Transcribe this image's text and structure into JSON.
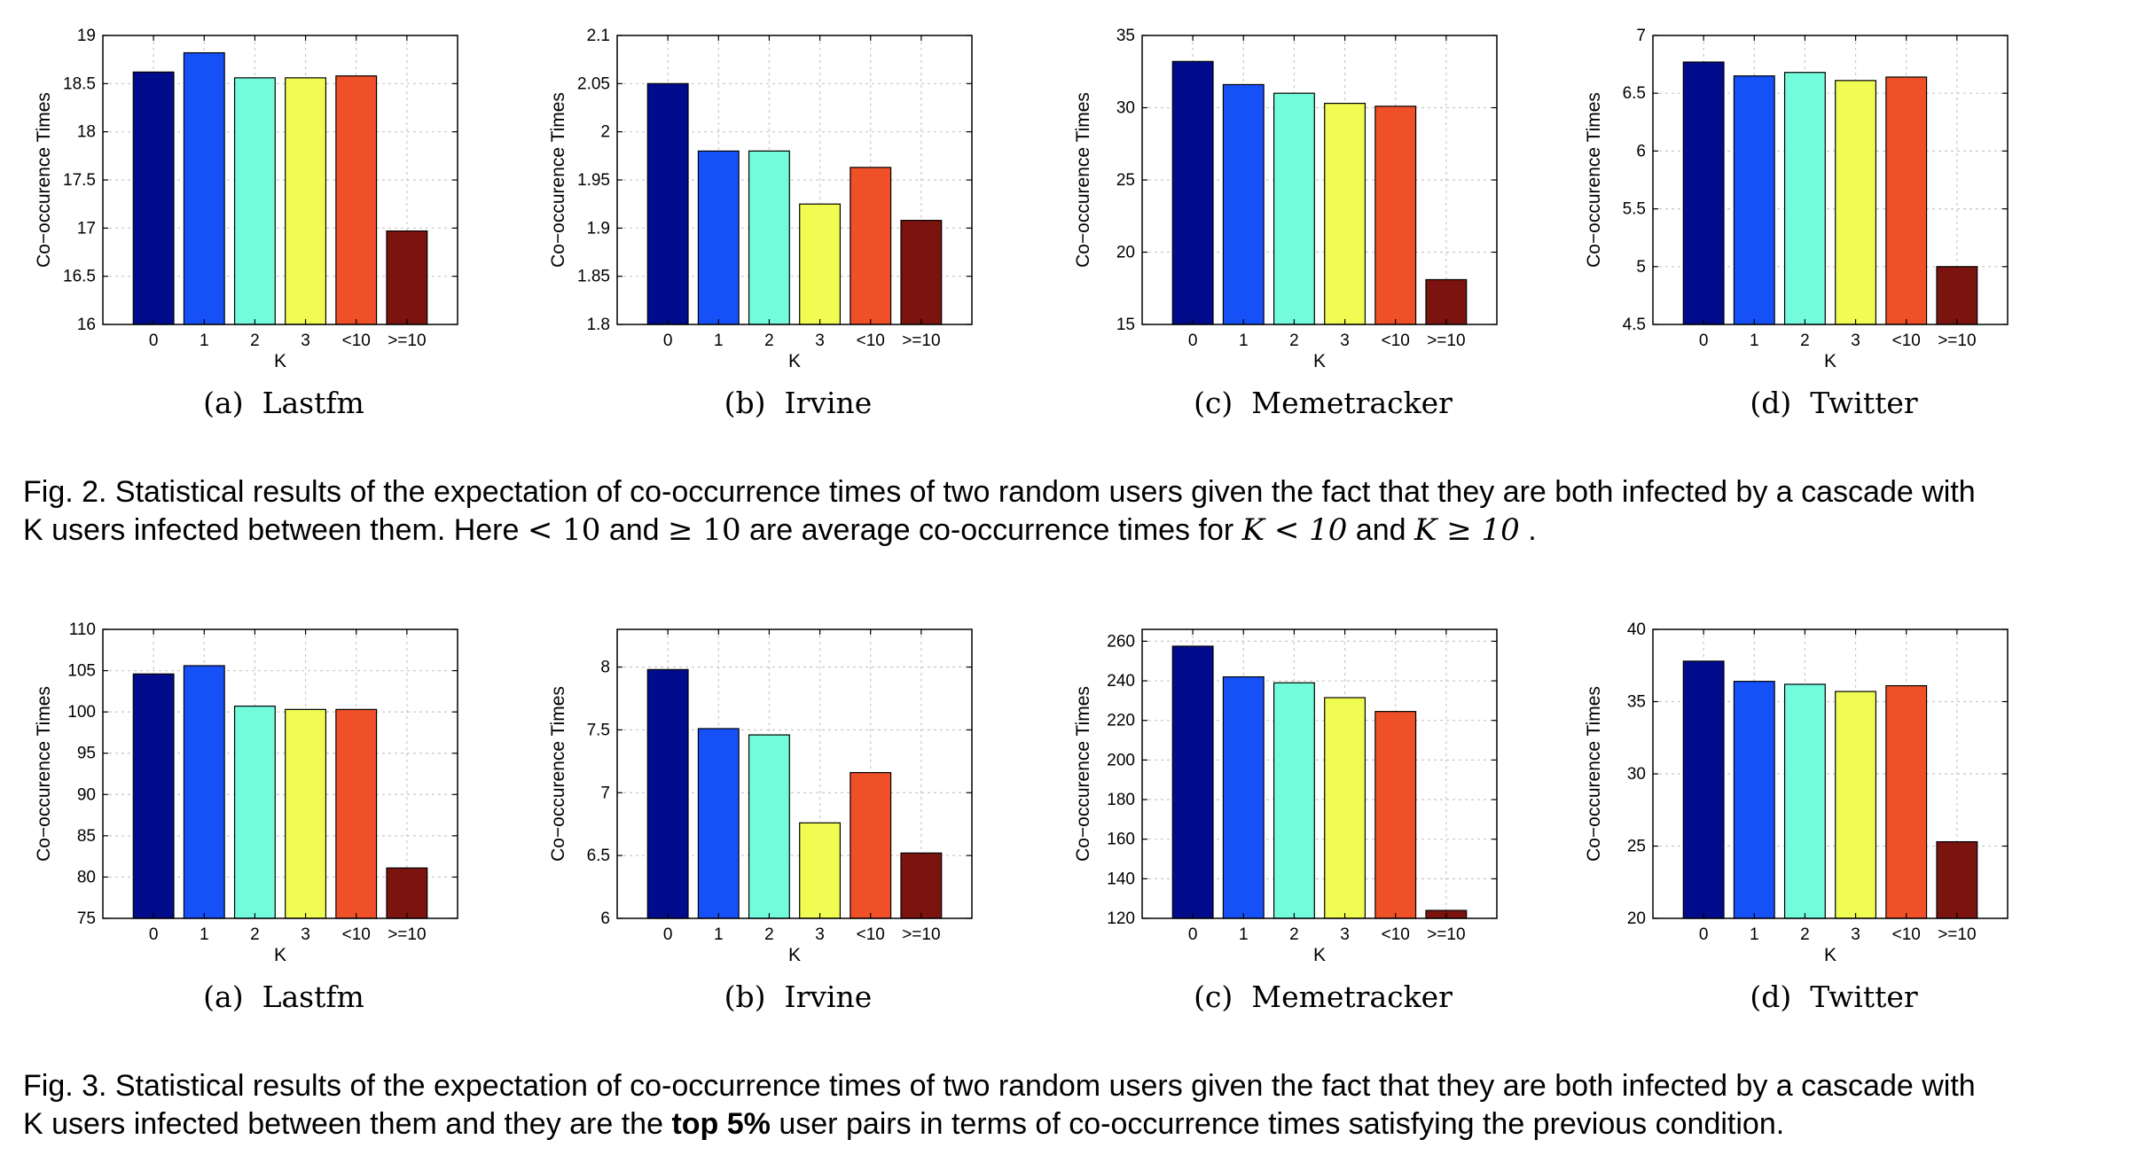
{
  "colors": [
    "#000c8b",
    "#1651f7",
    "#73fcdc",
    "#f1fc52",
    "#ef5028",
    "#7b130f"
  ],
  "chart_data": [
    {
      "type": "bar",
      "row": 1,
      "label": "(a)",
      "name": "Lastfm",
      "xlabel": "K",
      "ylabel": "Co−occurence Times",
      "categories": [
        "0",
        "1",
        "2",
        "3",
        "<10",
        ">=10"
      ],
      "values": [
        18.62,
        18.82,
        18.56,
        18.56,
        18.58,
        16.97
      ],
      "ylim": [
        16,
        19
      ],
      "yticks": [
        "16",
        "16.5",
        "17",
        "17.5",
        "18",
        "18.5",
        "19"
      ],
      "grid": true
    },
    {
      "type": "bar",
      "row": 1,
      "label": "(b)",
      "name": "Irvine",
      "xlabel": "K",
      "ylabel": "Co−occurence Times",
      "categories": [
        "0",
        "1",
        "2",
        "3",
        "<10",
        ">=10"
      ],
      "values": [
        2.05,
        1.98,
        1.98,
        1.925,
        1.963,
        1.908
      ],
      "ylim": [
        1.8,
        2.1
      ],
      "yticks": [
        "1.8",
        "1.85",
        "1.9",
        "1.95",
        "2",
        "2.05",
        "2.1"
      ],
      "grid": true
    },
    {
      "type": "bar",
      "row": 1,
      "label": "(c)",
      "name": "Memetracker",
      "xlabel": "K",
      "ylabel": "Co−occurence Times",
      "categories": [
        "0",
        "1",
        "2",
        "3",
        "<10",
        ">=10"
      ],
      "values": [
        33.2,
        31.6,
        31.0,
        30.3,
        30.1,
        18.1
      ],
      "ylim": [
        15,
        35
      ],
      "yticks": [
        "15",
        "20",
        "25",
        "30",
        "35"
      ],
      "grid": true
    },
    {
      "type": "bar",
      "row": 1,
      "label": "(d)",
      "name": "Twitter",
      "xlabel": "K",
      "ylabel": "Co−occurence Times",
      "categories": [
        "0",
        "1",
        "2",
        "3",
        "<10",
        ">=10"
      ],
      "values": [
        6.77,
        6.65,
        6.68,
        6.61,
        6.64,
        5.0
      ],
      "ylim": [
        4.5,
        7
      ],
      "yticks": [
        "4.5",
        "5",
        "5.5",
        "6",
        "6.5",
        "7"
      ],
      "grid": true
    },
    {
      "type": "bar",
      "row": 2,
      "label": "(a)",
      "name": "Lastfm",
      "xlabel": "K",
      "ylabel": "Co−occurence Times",
      "categories": [
        "0",
        "1",
        "2",
        "3",
        "<10",
        ">=10"
      ],
      "values": [
        104.6,
        105.6,
        100.7,
        100.3,
        100.3,
        81.1
      ],
      "ylim": [
        75,
        110
      ],
      "yticks": [
        "75",
        "80",
        "85",
        "90",
        "95",
        "100",
        "105",
        "110"
      ],
      "grid": true
    },
    {
      "type": "bar",
      "row": 2,
      "label": "(b)",
      "name": "Irvine",
      "xlabel": "K",
      "ylabel": "Co−occurence Times",
      "categories": [
        "0",
        "1",
        "2",
        "3",
        "<10",
        ">=10"
      ],
      "values": [
        7.98,
        7.51,
        7.46,
        6.76,
        7.16,
        6.52
      ],
      "ylim": [
        6,
        8.3
      ],
      "yticks": [
        "6",
        "6.5",
        "7",
        "7.5",
        "8"
      ],
      "grid": true
    },
    {
      "type": "bar",
      "row": 2,
      "label": "(c)",
      "name": "Memetracker",
      "xlabel": "K",
      "ylabel": "Co−occurence Times",
      "categories": [
        "0",
        "1",
        "2",
        "3",
        "<10",
        ">=10"
      ],
      "values": [
        257.5,
        242.0,
        239.0,
        231.5,
        224.5,
        124.0
      ],
      "ylim": [
        120,
        266
      ],
      "yticks": [
        "120",
        "140",
        "160",
        "180",
        "200",
        "220",
        "240",
        "260"
      ],
      "grid": true
    },
    {
      "type": "bar",
      "row": 2,
      "label": "(d)",
      "name": "Twitter",
      "xlabel": "K",
      "ylabel": "Co−occurence Times",
      "categories": [
        "0",
        "1",
        "2",
        "3",
        "<10",
        ">=10"
      ],
      "values": [
        37.8,
        36.4,
        36.2,
        35.7,
        36.1,
        25.3
      ],
      "ylim": [
        20,
        40
      ],
      "yticks": [
        "20",
        "25",
        "30",
        "35",
        "40"
      ],
      "grid": true
    }
  ],
  "captions": {
    "fig2": {
      "line1": "Fig. 2. Statistical results of the expectation of co-occurrence times of two random users given the fact that they are both infected by a cascade with",
      "l2a": "K users infected between them. Here ",
      "m1": "< 10",
      "l2b": " and ",
      "m2": "≥ 10",
      "l2c": " are average co-occurrence times for ",
      "m3": "K < 10",
      "l2d": " and ",
      "m4": "K ≥ 10",
      "l2e": " ."
    },
    "fig3": {
      "line1": "Fig. 3. Statistical results of the expectation of co-occurrence times of two random users given the fact that they are both infected by a cascade with",
      "l2a": "K users infected between them and they are the ",
      "bold": "top 5%",
      "l2b": " user pairs in terms of co-occurrence times satisfying the previous condition."
    }
  }
}
